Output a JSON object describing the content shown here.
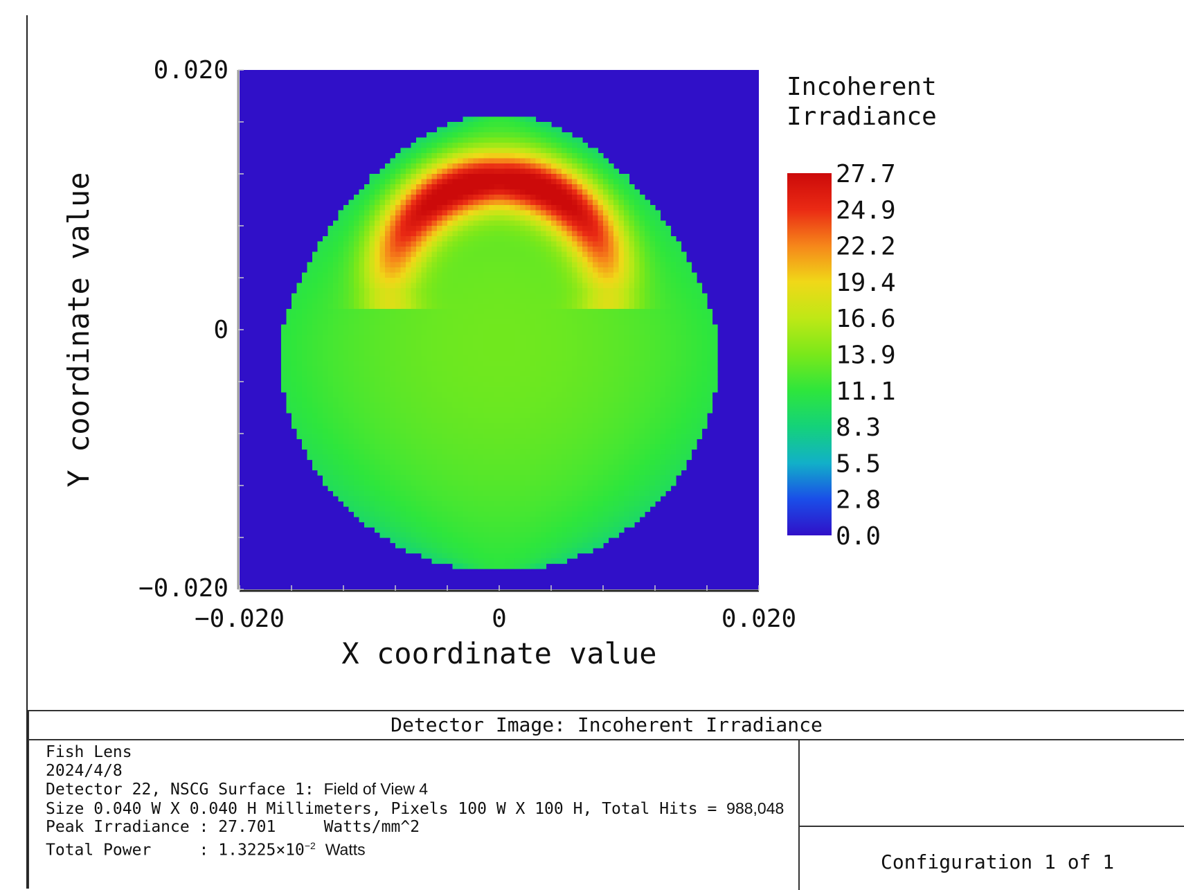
{
  "chart_data": {
    "type": "heatmap",
    "title": "Detector Image: Incoherent Irradiance",
    "xlabel": "X coordinate value",
    "ylabel": "Y coordinate value",
    "xlim": [
      -0.02,
      0.02
    ],
    "ylim": [
      -0.02,
      0.02
    ],
    "x_tick_labels": [
      "−0.020",
      "0",
      "0.020"
    ],
    "y_tick_labels": [
      "0.020",
      "0",
      "−0.020"
    ],
    "grid": 100,
    "colorbar": {
      "title_line1": "Incoherent",
      "title_line2": "Irradiance",
      "min": 0.0,
      "max": 27.7,
      "tick_labels": [
        "27.7",
        "24.9",
        "22.2",
        "19.4",
        "16.6",
        "13.9",
        "11.1",
        "8.3",
        "5.5",
        "2.8",
        "0.0"
      ]
    },
    "background_color": "#3010c8",
    "spot": {
      "center_x": 0.0,
      "top_y": 0.0166,
      "bottom_y": -0.0186,
      "half_width_max": 0.017,
      "interior_value": 13.5,
      "edge_value": 9.0,
      "arc_center_x": 0.0,
      "arc_center_y": 0.003,
      "arc_radius": 0.0085,
      "arc_peak_value": 27.7
    }
  },
  "info": {
    "line1": "Fish Lens",
    "line2": "2024/4/8",
    "line3_prefix": "Detector 22, NSCG Surface 1:",
    "line3_suffix": "Field of View 4",
    "line4_prefix": "Size 0.040 W X 0.040 H Millimeters, Pixels 100 W X 100 H, Total Hits =",
    "line4_hits": "988,048",
    "line5": "Peak Irradiance : 27.701     Watts/mm^2",
    "line6_prefix": "Total Power     : 1.3225×10",
    "line6_exp": "−2",
    "line6_suffix": "Watts",
    "configuration": "Configuration 1 of 1"
  }
}
